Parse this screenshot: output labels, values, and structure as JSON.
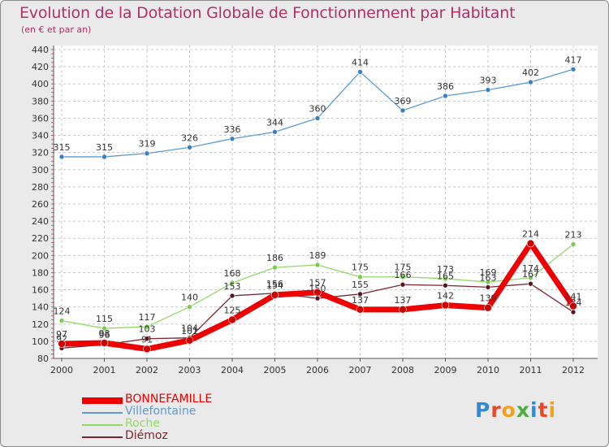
{
  "title": "Evolution de la Dotation Globale de Fonctionnement par Habitant",
  "subtitle": "(en € et par an)",
  "logo": {
    "letters": [
      "P",
      "r",
      "o",
      "x",
      "i",
      "t",
      "i"
    ],
    "colors": [
      "#2e8bd6",
      "#e8472a",
      "#f2a11f",
      "#4cae3b",
      "#2e8bd6",
      "#e8472a",
      "#f2a11f"
    ]
  },
  "chart_data": {
    "type": "line",
    "title": "Evolution de la Dotation Globale de Fonctionnement par Habitant",
    "subtitle": "(en € et par an)",
    "x": [
      "2000",
      "2001",
      "2002",
      "2003",
      "2004",
      "2005",
      "2006",
      "2007",
      "2008",
      "2009",
      "2010",
      "2011",
      "2012"
    ],
    "ylim": [
      80,
      440
    ],
    "yticks": [
      80,
      100,
      120,
      140,
      160,
      180,
      200,
      220,
      240,
      260,
      280,
      300,
      320,
      340,
      360,
      380,
      400,
      420,
      440
    ],
    "grid": true,
    "legend": "bottom-left",
    "series": [
      {
        "name": "Villefontaine",
        "color": "#5b9bd5",
        "marker": "#3a7fc4",
        "values": [
          315,
          315,
          319,
          326,
          336,
          344,
          360,
          414,
          369,
          386,
          393,
          402,
          417
        ]
      },
      {
        "name": "Roche",
        "color": "#93d96a",
        "marker": "#7ccc52",
        "values": [
          124,
          115,
          117,
          140,
          168,
          186,
          189,
          175,
          175,
          173,
          169,
          174,
          213
        ]
      },
      {
        "name": "Diémoz",
        "color": "#7a2530",
        "marker": "#5a1520",
        "values": [
          92,
          96,
          103,
          104,
          153,
          156,
          150,
          155,
          166,
          165,
          163,
          167,
          134
        ]
      },
      {
        "name": "BONNEFAMILLE",
        "color": "#ee0000",
        "marker": "#cc0000",
        "values": [
          97,
          98,
          91,
          101,
          125,
          154,
          157,
          137,
          137,
          142,
          139,
          214,
          141
        ]
      }
    ]
  }
}
